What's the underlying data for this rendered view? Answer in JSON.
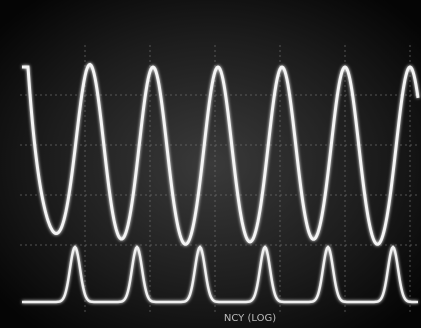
{
  "screen": {
    "caption": "NCY (LOG)"
  }
}
